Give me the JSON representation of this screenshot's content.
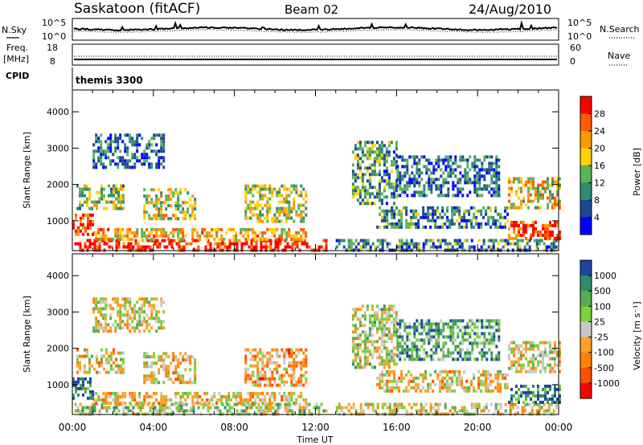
{
  "header": {
    "station": "Saskatoon (fitACF)",
    "beam": "Beam 02",
    "date": "24/Aug/2010"
  },
  "top_panels": {
    "nsky_label": "N.Sky",
    "nsky_ticks": [
      "10^5",
      "10^0"
    ],
    "nsearch_label": "N.Search",
    "nsearch_ticks": [
      "10^5",
      "10^0"
    ],
    "freq_label": "Freq.",
    "freq_unit": "[MHz]",
    "freq_ticks": [
      "18",
      "8"
    ],
    "nave_label": "Nave",
    "nave_ticks": [
      "60",
      "0"
    ],
    "cpid_label": "CPID",
    "cpid_value": "themis 3300"
  },
  "time_axis": {
    "title": "Time UT",
    "ticks": [
      "00:00",
      "04:00",
      "08:00",
      "12:00",
      "16:00",
      "20:00",
      "00:00"
    ]
  },
  "chart_data": [
    {
      "type": "heatmap",
      "quantity": "power",
      "ylabel": "Slant Range [km]",
      "yticks": [
        1000,
        2000,
        3000,
        4000
      ],
      "ylim": [
        180,
        4600
      ],
      "xlim_hours": [
        0,
        24
      ],
      "colorbar_label": "Power [dB]",
      "colorbar_ticks": [
        "28",
        "24",
        "20",
        "16",
        "12",
        "8",
        "4"
      ],
      "colorbar_colors": [
        "#ff0000",
        "#ff5a00",
        "#ff9900",
        "#ffd200",
        "#5ab45a",
        "#2f8c6e",
        "#1e4696",
        "#0000ff"
      ],
      "echo_regions": [
        {
          "t0": 0.1,
          "t1": 12.5,
          "r0": 200,
          "r1": 500,
          "level": 0.95
        },
        {
          "t0": 1.0,
          "t1": 11.5,
          "r0": 450,
          "r1": 800,
          "level": 0.65
        },
        {
          "t0": 0.0,
          "t1": 1.0,
          "r0": 600,
          "r1": 1200,
          "level": 0.9
        },
        {
          "t0": 0.2,
          "t1": 2.5,
          "r0": 1300,
          "r1": 2000,
          "level": 0.45
        },
        {
          "t0": 3.5,
          "t1": 6.0,
          "r0": 1100,
          "r1": 1900,
          "level": 0.55
        },
        {
          "t0": 8.5,
          "t1": 11.5,
          "r0": 1000,
          "r1": 2000,
          "level": 0.5
        },
        {
          "t0": 1.0,
          "t1": 4.5,
          "r0": 2500,
          "r1": 3400,
          "level": 0.2
        },
        {
          "t0": 13.0,
          "t1": 24.0,
          "r0": 200,
          "r1": 500,
          "level": 0.3
        },
        {
          "t0": 13.8,
          "t1": 16.0,
          "r0": 1500,
          "r1": 3200,
          "level": 0.35
        },
        {
          "t0": 15.0,
          "t1": 21.5,
          "r0": 800,
          "r1": 1400,
          "level": 0.3
        },
        {
          "t0": 16.0,
          "t1": 21.0,
          "r0": 1700,
          "r1": 2800,
          "level": 0.25
        },
        {
          "t0": 21.5,
          "t1": 24.0,
          "r0": 500,
          "r1": 1000,
          "level": 0.9
        },
        {
          "t0": 21.5,
          "t1": 24.0,
          "r0": 1400,
          "r1": 2200,
          "level": 0.6
        }
      ]
    },
    {
      "type": "heatmap",
      "quantity": "velocity",
      "ylabel": "Slant Range [km]",
      "yticks": [
        1000,
        2000,
        3000,
        4000
      ],
      "ylim": [
        180,
        4600
      ],
      "xlim_hours": [
        0,
        24
      ],
      "colorbar_label": "Velocity [m s⁻¹]",
      "colorbar_ticks": [
        "1000",
        "500",
        "100",
        "25",
        "-25",
        "-100",
        "-500",
        "-1000"
      ],
      "colorbar_colors": [
        "#1e46a0",
        "#2f8c6e",
        "#5aaa50",
        "#78d23c",
        "#c8c8c8",
        "#ffa028",
        "#ff8200",
        "#ff5000",
        "#ff0000"
      ],
      "echo_regions": [
        {
          "t0": 0.1,
          "t1": 12.5,
          "r0": 200,
          "r1": 500,
          "level": 0.6
        },
        {
          "t0": 1.0,
          "t1": 11.5,
          "r0": 450,
          "r1": 800,
          "level": 0.45
        },
        {
          "t0": 0.0,
          "t1": 1.0,
          "r0": 600,
          "r1": 1200,
          "level": 0.85
        },
        {
          "t0": 0.2,
          "t1": 2.5,
          "r0": 1300,
          "r1": 2000,
          "level": 0.45
        },
        {
          "t0": 3.5,
          "t1": 6.0,
          "r0": 1100,
          "r1": 1900,
          "level": 0.45
        },
        {
          "t0": 8.5,
          "t1": 11.5,
          "r0": 1000,
          "r1": 2000,
          "level": 0.35
        },
        {
          "t0": 1.0,
          "t1": 4.5,
          "r0": 2500,
          "r1": 3400,
          "level": 0.5
        },
        {
          "t0": 13.0,
          "t1": 24.0,
          "r0": 200,
          "r1": 500,
          "level": 0.5
        },
        {
          "t0": 13.8,
          "t1": 16.0,
          "r0": 1500,
          "r1": 3200,
          "level": 0.55
        },
        {
          "t0": 15.0,
          "t1": 21.5,
          "r0": 800,
          "r1": 1400,
          "level": 0.45
        },
        {
          "t0": 16.0,
          "t1": 21.0,
          "r0": 1700,
          "r1": 2800,
          "level": 0.75
        },
        {
          "t0": 21.5,
          "t1": 24.0,
          "r0": 500,
          "r1": 1000,
          "level": 0.85
        },
        {
          "t0": 21.5,
          "t1": 24.0,
          "r0": 1400,
          "r1": 2200,
          "level": 0.5
        }
      ]
    }
  ]
}
